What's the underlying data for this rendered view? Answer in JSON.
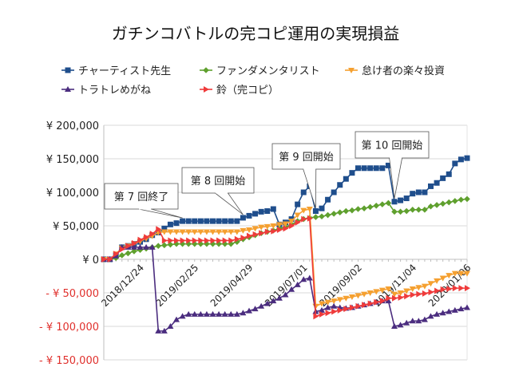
{
  "chart_data": {
    "type": "line",
    "title": "ガチンコバトルの完コピ運用の実現損益",
    "xlabel": "",
    "ylabel": "",
    "ylim": [
      -150000,
      200000
    ],
    "y_ticks": [
      {
        "value": 200000,
        "label": "¥ 200,000"
      },
      {
        "value": 150000,
        "label": "¥ 150,000"
      },
      {
        "value": 100000,
        "label": "¥ 100,000"
      },
      {
        "value": 50000,
        "label": "¥ 50,000"
      },
      {
        "value": 0,
        "label": "¥ 0"
      },
      {
        "value": -50000,
        "label": "- ¥ 50,000"
      },
      {
        "value": -100000,
        "label": "- ¥ 100,000"
      },
      {
        "value": -150000,
        "label": "- ¥ 150,000"
      }
    ],
    "x_ticks": [
      "2018/12/24",
      "2019/02/25",
      "2019/04/29",
      "2019/07/01",
      "2019/09/02",
      "2019/11/04",
      "2020/01/06"
    ],
    "x_tick_every": 9,
    "grid": true,
    "legend_position": "top",
    "series": [
      {
        "name": "チャーティスト先生",
        "color": "#1f4e8c",
        "marker": "square",
        "values": [
          0,
          0,
          6000,
          18000,
          20000,
          23000,
          26000,
          30000,
          36000,
          40000,
          46000,
          52000,
          54000,
          57000,
          57000,
          57000,
          57000,
          57000,
          57000,
          57000,
          57000,
          57000,
          57000,
          62000,
          65000,
          68000,
          71000,
          72000,
          75000,
          52000,
          55000,
          60000,
          82000,
          100000,
          109000,
          72000,
          76000,
          89000,
          100000,
          111000,
          120000,
          129000,
          136000,
          136000,
          136000,
          136000,
          136000,
          140000,
          86000,
          88000,
          91000,
          98000,
          100000,
          100000,
          109000,
          114000,
          121000,
          127000,
          143000,
          149000,
          151000
        ]
      },
      {
        "name": "ファンダメンタリスト",
        "color": "#5fa02e",
        "marker": "diamond",
        "values": [
          0,
          0,
          2000,
          6000,
          9000,
          12000,
          14000,
          16000,
          18000,
          20000,
          21000,
          22000,
          23000,
          23000,
          23000,
          23000,
          23000,
          23000,
          23000,
          23000,
          23000,
          23000,
          26000,
          30000,
          33000,
          36000,
          39000,
          41000,
          43000,
          46000,
          48000,
          52000,
          57000,
          60000,
          62000,
          63000,
          64000,
          66000,
          68000,
          70000,
          72000,
          73000,
          75000,
          76000,
          78000,
          80000,
          82000,
          84000,
          71000,
          71000,
          72000,
          74000,
          74000,
          74000,
          79000,
          81000,
          83000,
          85000,
          87000,
          89000,
          90000
        ]
      },
      {
        "name": "怠け者の楽々投資",
        "color": "#f5a030",
        "marker": "triangle-down",
        "values": [
          0,
          0,
          8000,
          17000,
          20000,
          23000,
          27000,
          31000,
          35000,
          40000,
          41000,
          41000,
          41000,
          41000,
          41000,
          41000,
          41000,
          41000,
          41000,
          41000,
          41000,
          41000,
          41000,
          43000,
          44000,
          46000,
          48000,
          49000,
          50000,
          52000,
          53000,
          57000,
          66000,
          73000,
          75000,
          -70000,
          -66000,
          -64000,
          -62000,
          -60000,
          -58000,
          -56000,
          -54000,
          -52000,
          -50000,
          -48000,
          -46000,
          -44000,
          -52000,
          -50000,
          -47000,
          -44000,
          -42000,
          -40000,
          -36000,
          -32000,
          -28000,
          -24000,
          -21000,
          -21000,
          -21000
        ]
      },
      {
        "name": "トラトレめがね",
        "color": "#4b2d7f",
        "marker": "triangle-up",
        "values": [
          0,
          0,
          5000,
          18000,
          18000,
          18000,
          18000,
          18000,
          18000,
          -107000,
          -107000,
          -100000,
          -90000,
          -85000,
          -82000,
          -82000,
          -82000,
          -82000,
          -82000,
          -82000,
          -82000,
          -82000,
          -82000,
          -80000,
          -77000,
          -74000,
          -70000,
          -66000,
          -62000,
          -58000,
          -53000,
          -45000,
          -38000,
          -30000,
          -28000,
          -78000,
          -76000,
          -72000,
          -70000,
          -72000,
          -73000,
          -72000,
          -70000,
          -68000,
          -66000,
          -64000,
          -62000,
          -62000,
          -100000,
          -98000,
          -95000,
          -92000,
          -92000,
          -90000,
          -85000,
          -82000,
          -80000,
          -78000,
          -76000,
          -74000,
          -72000
        ]
      },
      {
        "name": "鈴（完コピ）",
        "color": "#ef3b3b",
        "marker": "triangle-right",
        "values": [
          0,
          0,
          8000,
          15000,
          20000,
          24000,
          29000,
          33000,
          38000,
          45000,
          28000,
          28000,
          28000,
          28000,
          28000,
          28000,
          28000,
          28000,
          28000,
          28000,
          28000,
          28000,
          30000,
          32000,
          35000,
          37000,
          39000,
          41000,
          42000,
          44000,
          46000,
          50000,
          55000,
          60000,
          61000,
          -85000,
          -82000,
          -80000,
          -78000,
          -76000,
          -74000,
          -72000,
          -70000,
          -68000,
          -66000,
          -64000,
          -62000,
          -58000,
          -58000,
          -57000,
          -55000,
          -53000,
          -52000,
          -51000,
          -49000,
          -47000,
          -45000,
          -44000,
          -43000,
          -43000,
          -43000
        ]
      }
    ],
    "annotations": [
      {
        "text": "第 7 回終了",
        "series": 0,
        "index": 13
      },
      {
        "text": "第 8 回開始",
        "series": 0,
        "index": 23
      },
      {
        "text": "第 9 回開始",
        "series": 0,
        "index": 35
      },
      {
        "text": "第 10 回開始",
        "series": 0,
        "index": 48
      }
    ]
  }
}
